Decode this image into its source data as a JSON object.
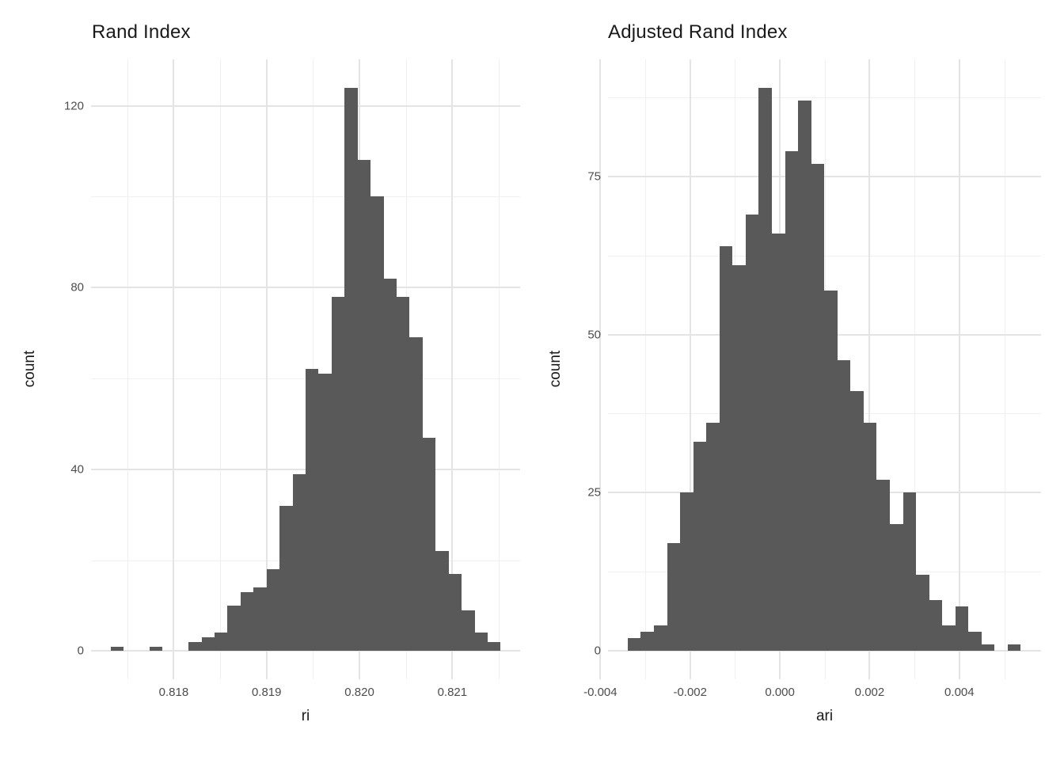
{
  "page": {
    "background_color": "#ffffff",
    "text_color": "#1a1a1a",
    "tick_label_color": "#4d4d4d"
  },
  "chart_data": [
    {
      "type": "bar",
      "subtype": "histogram",
      "title": "Rand Index",
      "xlabel": "ri",
      "ylabel": "count",
      "bar_color": "#595959",
      "grid": {
        "major_color": "#e4e4e4",
        "minor_color": "#f0f0f0",
        "grid_on": true
      },
      "bins": {
        "start": 0.81732,
        "width": 0.00014,
        "counts": [
          1,
          0,
          0,
          1,
          0,
          0,
          2,
          3,
          4,
          10,
          13,
          14,
          18,
          32,
          39,
          62,
          61,
          78,
          124,
          108,
          100,
          82,
          78,
          69,
          47,
          22,
          17,
          9,
          4,
          2
        ],
        "total": 1000
      },
      "x_axis": {
        "range": [
          0.81711,
          0.82173
        ],
        "major_ticks": [
          0.818,
          0.819,
          0.82,
          0.821
        ],
        "major_labels": [
          "0.818",
          "0.819",
          "0.820",
          "0.821"
        ],
        "minor_ticks": [
          0.8175,
          0.8185,
          0.8195,
          0.8205,
          0.8215
        ]
      },
      "y_axis": {
        "range": [
          -6.2,
          130.2
        ],
        "major_ticks": [
          0,
          40,
          80,
          120
        ],
        "major_labels": [
          "0",
          "40",
          "80",
          "120"
        ],
        "minor_ticks": [
          20,
          60,
          100
        ]
      }
    },
    {
      "type": "bar",
      "subtype": "histogram",
      "title": "Adjusted Rand Index",
      "xlabel": "ari",
      "ylabel": "count",
      "bar_color": "#595959",
      "grid": {
        "major_color": "#e4e4e4",
        "minor_color": "#f0f0f0",
        "grid_on": true
      },
      "bins": {
        "start": -0.00339,
        "width": 0.000292,
        "counts": [
          2,
          3,
          4,
          17,
          25,
          33,
          36,
          64,
          61,
          69,
          89,
          66,
          79,
          87,
          77,
          57,
          46,
          41,
          36,
          27,
          20,
          25,
          12,
          8,
          4,
          7,
          3,
          1,
          0,
          1
        ],
        "total": 1000
      },
      "x_axis": {
        "range": [
          -0.00383,
          0.00582
        ],
        "major_ticks": [
          -0.004,
          -0.002,
          0,
          0.002,
          0.004
        ],
        "major_labels": [
          "-0.004",
          "-0.002",
          "0.000",
          "0.002",
          "0.004"
        ],
        "minor_ticks": [
          -0.003,
          -0.001,
          0.001,
          0.003,
          0.005
        ]
      },
      "y_axis": {
        "range": [
          -4.45,
          93.45
        ],
        "major_ticks": [
          0,
          25,
          50,
          75
        ],
        "major_labels": [
          "0",
          "25",
          "50",
          "75"
        ],
        "minor_ticks": [
          12.5,
          37.5,
          62.5,
          87.5
        ]
      }
    }
  ]
}
